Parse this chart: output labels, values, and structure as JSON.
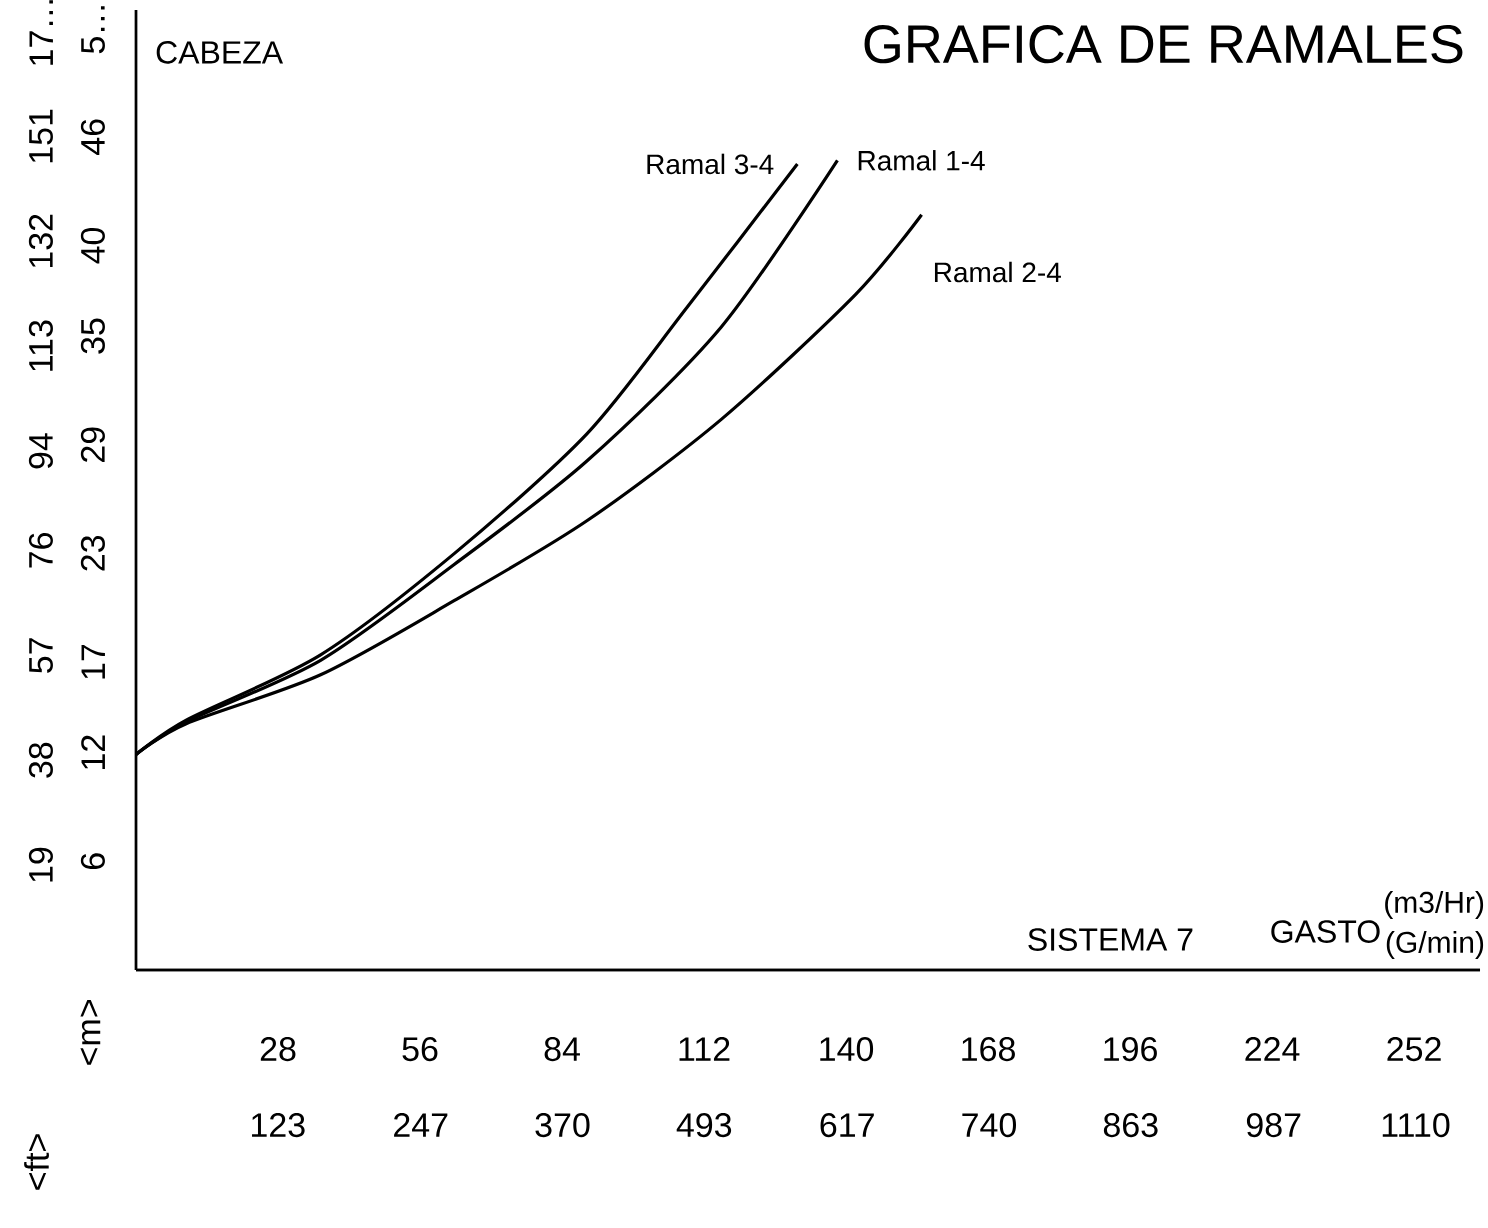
{
  "chart_data": {
    "type": "line",
    "title": "GRAFICA DE RAMALES",
    "annotations": [
      "CABEZA",
      "SISTEMA 7",
      "GASTO"
    ],
    "xlabel": "(m3/Hr)",
    "x2label": "(G/min)",
    "ylabel": "<m>",
    "y2label": "<ft>",
    "xlim": [
      0,
      265
    ],
    "xticks": [
      28,
      56,
      84,
      112,
      140,
      168,
      196,
      224,
      252
    ],
    "x2lim": [
      0,
      1166
    ],
    "x2ticks": [
      123,
      247,
      370,
      493,
      617,
      740,
      863,
      987,
      1110
    ],
    "ylim": [
      0,
      53
    ],
    "yticks": [
      6,
      12,
      17,
      23,
      29,
      35,
      40,
      46,
      {
        "value": 52,
        "label": "5…"
      }
    ],
    "y2lim": [
      0,
      173.9
    ],
    "y2ticks": [
      19,
      38,
      57,
      76,
      94,
      113,
      132,
      151,
      {
        "value": 170,
        "label": "17…"
      }
    ],
    "series": [
      {
        "name": "Ramal 3-4",
        "color": "#000000",
        "x": [
          0,
          9.9,
          36.4,
          62.8,
          88.9,
          108.7,
          130.4
        ],
        "values": [
          11.9,
          13.8,
          17.4,
          23.0,
          29.6,
          36.6,
          44.5
        ]
      },
      {
        "name": "Ramal 1-4",
        "color": "#000000",
        "x": [
          0,
          9.9,
          36.4,
          62.8,
          88.9,
          115.4,
          138.3
        ],
        "values": [
          11.9,
          13.7,
          17.1,
          22.4,
          28.1,
          35.5,
          44.7
        ]
      },
      {
        "name": "Ramal 2-4",
        "color": "#000000",
        "x": [
          0,
          9.9,
          36.4,
          62.8,
          88.9,
          115.4,
          141.9,
          154.9
        ],
        "values": [
          11.9,
          13.6,
          16.3,
          20.4,
          24.8,
          30.4,
          37.3,
          41.7
        ]
      }
    ]
  }
}
